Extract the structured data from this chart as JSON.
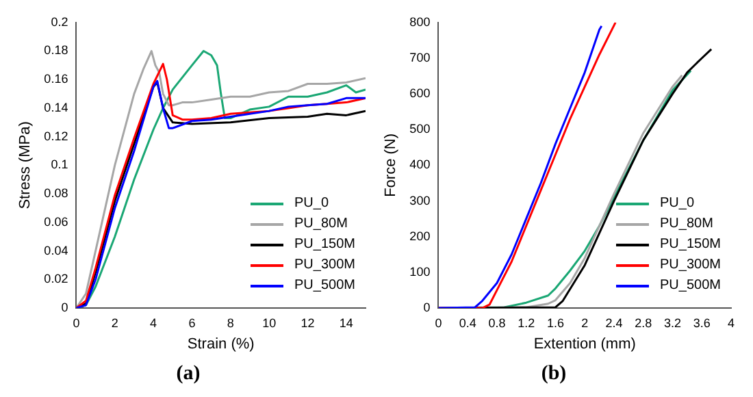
{
  "chart_data": [
    {
      "type": "line",
      "title": "(a)",
      "xlabel": "Strain (%)",
      "ylabel": "Stress (MPa)",
      "xlim": [
        0,
        15
      ],
      "xticks": [
        0,
        2,
        4,
        6,
        8,
        10,
        12,
        14
      ],
      "ylim": [
        0,
        0.2
      ],
      "yticks": [
        0,
        0.02,
        0.04,
        0.06,
        0.08,
        0.1,
        0.12,
        0.14,
        0.16,
        0.18,
        0.2
      ],
      "grid": false,
      "legend": "bottom right",
      "series": [
        {
          "name": "PU_0",
          "color": "#1aa774",
          "x": [
            0,
            0.5,
            1,
            2,
            3,
            4,
            4.5,
            5,
            6,
            6.6,
            7,
            7.3,
            7.5,
            7.7,
            8,
            9,
            10,
            11,
            12,
            13,
            14,
            14.5,
            15
          ],
          "values": [
            0,
            0.002,
            0.015,
            0.05,
            0.09,
            0.125,
            0.14,
            0.153,
            0.17,
            0.18,
            0.177,
            0.17,
            0.15,
            0.133,
            0.133,
            0.139,
            0.141,
            0.148,
            0.148,
            0.151,
            0.156,
            0.151,
            0.153
          ]
        },
        {
          "name": "PU_80M",
          "color": "#a6a6a6",
          "x": [
            0,
            0.5,
            1,
            2,
            3,
            3.5,
            3.9,
            4.1,
            4.3,
            4.5,
            4.8,
            5,
            5.5,
            6,
            7,
            8,
            9,
            10,
            11,
            12,
            13,
            14,
            15
          ],
          "values": [
            0,
            0.01,
            0.04,
            0.1,
            0.15,
            0.168,
            0.18,
            0.17,
            0.165,
            0.15,
            0.142,
            0.142,
            0.144,
            0.144,
            0.146,
            0.148,
            0.148,
            0.151,
            0.152,
            0.157,
            0.157,
            0.158,
            0.161
          ]
        },
        {
          "name": "PU_150M",
          "color": "#000000",
          "x": [
            0,
            0.5,
            1,
            2,
            3,
            4,
            4.2,
            4.5,
            5,
            6,
            8,
            10,
            12,
            13,
            14,
            15
          ],
          "values": [
            0,
            0.003,
            0.025,
            0.075,
            0.115,
            0.155,
            0.158,
            0.14,
            0.13,
            0.129,
            0.13,
            0.133,
            0.134,
            0.136,
            0.135,
            0.138
          ]
        },
        {
          "name": "PU_300M",
          "color": "#ff0000",
          "x": [
            0,
            0.5,
            1,
            2,
            3,
            4,
            4.5,
            4.7,
            5,
            5.5,
            6,
            7,
            8,
            9,
            10,
            11,
            12,
            13,
            14,
            15
          ],
          "values": [
            0,
            0.005,
            0.028,
            0.079,
            0.119,
            0.157,
            0.171,
            0.16,
            0.135,
            0.132,
            0.132,
            0.133,
            0.136,
            0.137,
            0.138,
            0.14,
            0.142,
            0.143,
            0.144,
            0.147
          ]
        },
        {
          "name": "PU_500M",
          "color": "#0000ff",
          "x": [
            0,
            0.5,
            1,
            2,
            3,
            4,
            4.2,
            4.5,
            4.8,
            5,
            6,
            7,
            8,
            10,
            11,
            12,
            13,
            14,
            15
          ],
          "values": [
            0,
            0.002,
            0.02,
            0.07,
            0.11,
            0.155,
            0.159,
            0.14,
            0.126,
            0.126,
            0.131,
            0.132,
            0.134,
            0.138,
            0.141,
            0.142,
            0.143,
            0.147,
            0.147
          ]
        }
      ]
    },
    {
      "type": "line",
      "title": "(b)",
      "xlabel": "Extention (mm)",
      "ylabel": "Force (N)",
      "xlim": [
        0,
        4
      ],
      "xticks": [
        0,
        0.4,
        0.8,
        1.2,
        1.6,
        2,
        2.4,
        2.8,
        3.2,
        3.6,
        4
      ],
      "ylim": [
        0,
        800
      ],
      "yticks": [
        0,
        100,
        200,
        300,
        400,
        500,
        600,
        700,
        800
      ],
      "grid": false,
      "legend": "bottom right",
      "series": [
        {
          "name": "PU_0",
          "color": "#1aa774",
          "x": [
            0,
            0.9,
            1.2,
            1.5,
            1.6,
            1.8,
            2,
            2.2,
            2.4,
            2.8,
            3.2,
            3.45
          ],
          "values": [
            0,
            2,
            15,
            35,
            55,
            105,
            160,
            230,
            310,
            470,
            610,
            665
          ]
        },
        {
          "name": "PU_80M",
          "color": "#a6a6a6",
          "x": [
            0,
            1.2,
            1.5,
            1.6,
            1.8,
            2,
            2.4,
            2.8,
            3.2,
            3.33
          ],
          "values": [
            0,
            2,
            12,
            22,
            70,
            140,
            320,
            490,
            620,
            652
          ]
        },
        {
          "name": "PU_150M",
          "color": "#000000",
          "x": [
            0,
            1.6,
            1.7,
            2,
            2.4,
            2.8,
            3.2,
            3.4,
            3.6,
            3.73
          ],
          "values": [
            0,
            2,
            20,
            120,
            300,
            470,
            600,
            660,
            700,
            725
          ]
        },
        {
          "name": "PU_300M",
          "color": "#ff0000",
          "x": [
            0,
            0.6,
            0.7,
            0.8,
            1,
            1.2,
            1.4,
            1.6,
            1.8,
            2,
            2.2,
            2.42
          ],
          "values": [
            0,
            0,
            10,
            50,
            130,
            230,
            330,
            430,
            530,
            620,
            710,
            800
          ]
        },
        {
          "name": "PU_500M",
          "color": "#0000ff",
          "x": [
            0,
            0.5,
            0.6,
            0.8,
            1,
            1.2,
            1.4,
            1.6,
            1.8,
            2,
            2.2,
            2.23
          ],
          "values": [
            0,
            2,
            20,
            70,
            150,
            250,
            350,
            460,
            560,
            660,
            780,
            790
          ]
        }
      ]
    }
  ]
}
